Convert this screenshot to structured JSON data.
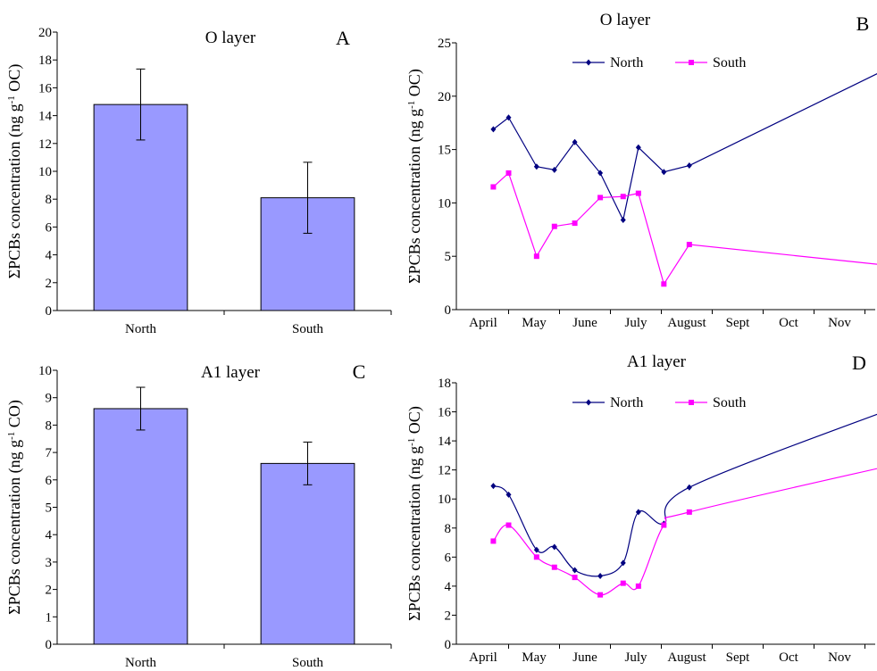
{
  "chart_data": [
    {
      "id": "A",
      "type": "bar",
      "title": "O layer",
      "panel_letter": "A",
      "ylabel_html": "ΣPCBs concentration (ng g<tspan baseline-shift='super' font-size='11'>-1</tspan> OC)",
      "ylabel_text": "ΣPCBs concentration (ng g-1 OC)",
      "categories": [
        "North",
        "South"
      ],
      "values": [
        14.8,
        8.1
      ],
      "errors": [
        2.55,
        2.55
      ],
      "ylim": [
        0,
        20
      ],
      "yticks": [
        0,
        2,
        4,
        6,
        8,
        10,
        12,
        14,
        16,
        18,
        20
      ],
      "bar_color": "#9999ff"
    },
    {
      "id": "B",
      "type": "line",
      "title": "O layer",
      "panel_letter": "B",
      "ylabel_text": "ΣPCBs concentration (ng g-1 OC)",
      "xtick_labels": [
        "April",
        "May",
        "June",
        "July",
        "August",
        "Sept",
        "Oct",
        "Nov"
      ],
      "ylim": [
        0,
        25
      ],
      "yticks": [
        0,
        5,
        10,
        15,
        20,
        25
      ],
      "legend": "top",
      "series": [
        {
          "name": "North",
          "color": "#000080",
          "marker": "diamond",
          "x": [
            0.2,
            0.5,
            1.05,
            1.4,
            1.8,
            2.3,
            2.75,
            3.05,
            3.55,
            4.05,
            8.25
          ],
          "y": [
            16.9,
            18.0,
            13.4,
            13.1,
            15.7,
            12.8,
            8.4,
            15.2,
            12.9,
            13.5,
            23.3
          ]
        },
        {
          "name": "South",
          "color": "#ff00ff",
          "marker": "square",
          "x": [
            0.2,
            0.5,
            1.05,
            1.4,
            1.8,
            2.3,
            2.75,
            3.05,
            3.55,
            4.05,
            8.25
          ],
          "y": [
            11.5,
            12.8,
            5.0,
            7.8,
            8.1,
            10.5,
            10.6,
            10.9,
            2.4,
            6.1,
            4.0
          ]
        }
      ]
    },
    {
      "id": "C",
      "type": "bar",
      "title": "A1 layer",
      "panel_letter": "C",
      "ylabel_text": "ΣPCBs concentration (ng g-1 CO)",
      "categories": [
        "North",
        "South"
      ],
      "values": [
        8.6,
        6.6
      ],
      "errors": [
        0.78,
        0.78
      ],
      "ylim": [
        0,
        10
      ],
      "yticks": [
        0,
        1,
        2,
        3,
        4,
        5,
        6,
        7,
        8,
        9,
        10
      ],
      "bar_color": "#9999ff"
    },
    {
      "id": "D",
      "type": "line",
      "title": "A1 layer",
      "panel_letter": "D",
      "ylabel_text": "ΣPCBs concentration (ng g-1 OC)",
      "xtick_labels": [
        "April",
        "May",
        "June",
        "July",
        "August",
        "Sept",
        "Oct",
        "Nov"
      ],
      "ylim": [
        0,
        18
      ],
      "yticks": [
        0,
        2,
        4,
        6,
        8,
        10,
        12,
        14,
        16,
        18
      ],
      "legend": "top",
      "smooth": true,
      "series": [
        {
          "name": "North",
          "color": "#000080",
          "marker": "diamond",
          "x": [
            0.2,
            0.5,
            1.05,
            1.4,
            1.8,
            2.3,
            2.75,
            3.05,
            3.55,
            4.05,
            8.25
          ],
          "y": [
            10.9,
            10.3,
            6.5,
            6.7,
            5.1,
            4.7,
            5.6,
            9.1,
            8.3,
            10.8,
            16.5
          ]
        },
        {
          "name": "South",
          "color": "#ff00ff",
          "marker": "square",
          "x": [
            0.2,
            0.5,
            1.05,
            1.4,
            1.8,
            2.3,
            2.75,
            3.05,
            3.55,
            4.05,
            8.25
          ],
          "y": [
            7.1,
            8.2,
            6.0,
            5.3,
            4.6,
            3.4,
            4.2,
            4.0,
            8.2,
            9.1,
            12.5
          ]
        }
      ]
    }
  ]
}
